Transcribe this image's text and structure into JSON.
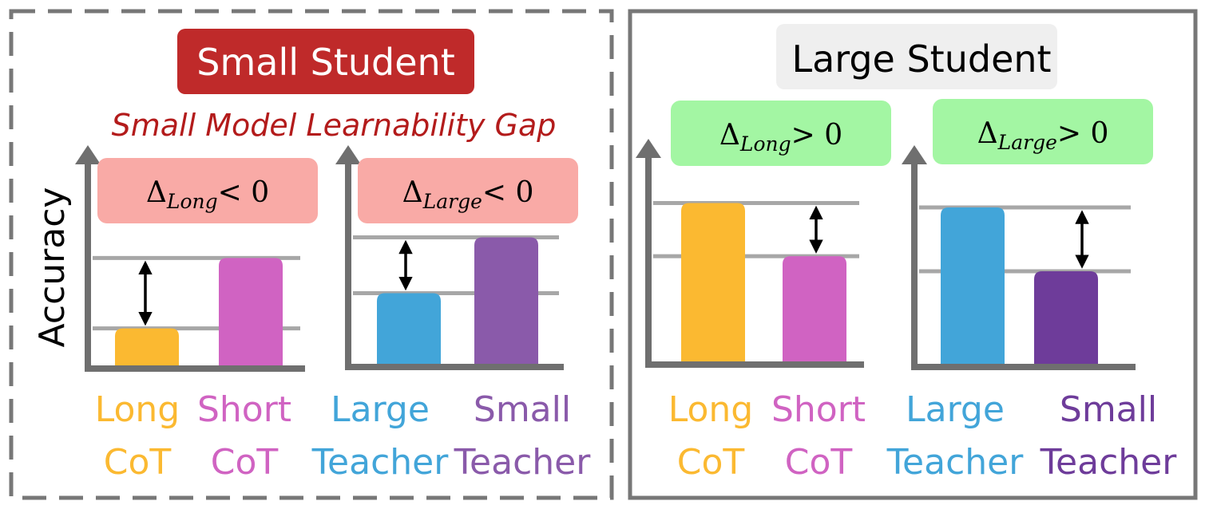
{
  "panels": [
    {
      "title": "Small Student",
      "subtitle": "Small Model Learnability Gap",
      "ylabel": "Accuracy",
      "charts": [
        {
          "delta": {
            "symbol": "Δ",
            "sub": "Long",
            "rel": "< 0"
          },
          "bars": [
            {
              "line1": "Long",
              "line2": "CoT",
              "color": "#fbb931",
              "value": 0.2
            },
            {
              "line1": "Short",
              "line2": "CoT",
              "color": "#d063c2",
              "value": 0.55
            }
          ]
        },
        {
          "delta": {
            "symbol": "Δ",
            "sub": "Large",
            "rel": "< 0"
          },
          "bars": [
            {
              "line1": "Large",
              "line2": "Teacher",
              "color": "#42a5d9",
              "value": 0.37
            },
            {
              "line1": "Small",
              "line2": "Teacher",
              "color": "#8a5aaa",
              "value": 0.65
            }
          ]
        }
      ]
    },
    {
      "title": "Large Student",
      "charts": [
        {
          "delta": {
            "symbol": "Δ",
            "sub": "Long",
            "rel": "> 0"
          },
          "bars": [
            {
              "line1": "Long",
              "line2": "CoT",
              "color": "#fbb931",
              "value": 0.82
            },
            {
              "line1": "Short",
              "line2": "CoT",
              "color": "#d063c2",
              "value": 0.55
            }
          ]
        },
        {
          "delta": {
            "symbol": "Δ",
            "sub": "Large",
            "rel": "> 0"
          },
          "bars": [
            {
              "line1": "Large",
              "line2": "Teacher",
              "color": "#42a5d9",
              "value": 0.8
            },
            {
              "line1": "Small",
              "line2": "Teacher",
              "color": "#6e3c9a",
              "value": 0.48
            }
          ]
        }
      ]
    }
  ],
  "colors": {
    "small_title_bg": "#bf2a2a",
    "large_title_bg": "#efefef",
    "subtitle": "#b31b1b",
    "negative_box": "#f9aaa6",
    "positive_box": "#a3f6a3",
    "axis": "#6f6f6f",
    "guide": "#a7a7a7"
  }
}
